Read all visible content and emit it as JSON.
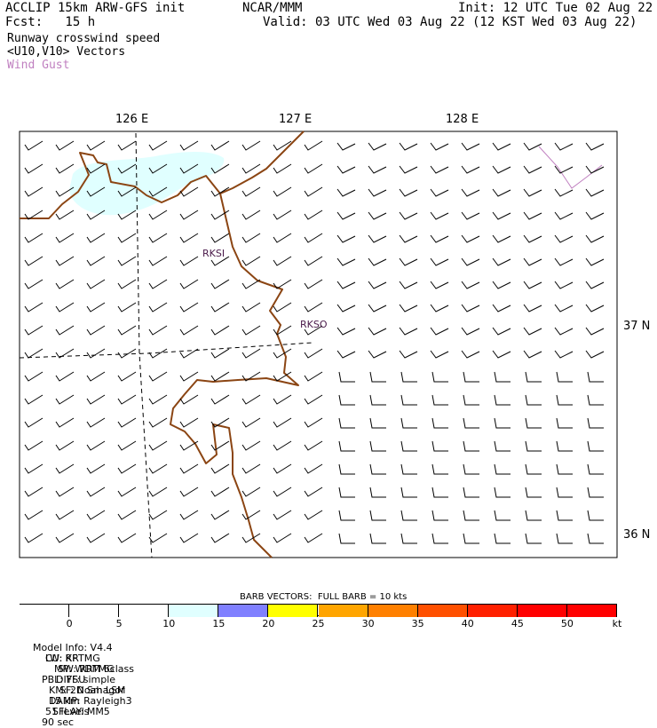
{
  "header": {
    "title": "ACCLIP 15km ARW-GFS init",
    "center": "NCAR/MMM",
    "init": "Init: 12 UTC Tue 02 Aug 22",
    "fcst": "Fcst:   15 h",
    "valid": "Valid: 03 UTC Wed 03 Aug 22 (12 KST Wed 03 Aug 22)",
    "field1": "Runway crosswind speed",
    "field2": "<U10,V10> Vectors",
    "field3": "Wind Gust",
    "field3_color": "#c080c0"
  },
  "axes": {
    "lon_labels": [
      "126 E",
      "127 E",
      "128 E"
    ],
    "lat_labels": [
      "37 N",
      "36 N"
    ]
  },
  "stations": [
    "RKSI",
    "RKSO"
  ],
  "legend": {
    "barb_note": "BARB VECTORS:  FULL BARB = 10 kts",
    "ticks": [
      "0",
      "5",
      "10",
      "15",
      "20",
      "25",
      "30",
      "35",
      "40",
      "45",
      "50"
    ],
    "unit": "kt",
    "colors": [
      "#ffffff",
      "#ffffff",
      "#ffffff",
      "#e0ffff",
      "#8080ff",
      "#ffff00",
      "#ffa500",
      "#ff8000",
      "#ff5000",
      "#ff2000",
      "#ff0000",
      "#ff0000"
    ]
  },
  "footer": {
    "line1": [
      "Model Info: V4.4",
      "CU: KF",
      "MP: WDM 6class",
      "PBL: YSU",
      "SF: Noah LSM",
      "15 km",
      "51 levels",
      "90 sec"
    ],
    "line2": [
      "LW: RRTMG",
      "SW: RRTMG",
      "DIFF: simple",
      "KM: 2D Smagor",
      "DAMP: Rayleigh3",
      "SFLAY: MM5"
    ]
  },
  "colors": {
    "coast": "#8b4513",
    "grid": "#000000",
    "gust": "#c080c0",
    "shade": "#e0ffff"
  }
}
